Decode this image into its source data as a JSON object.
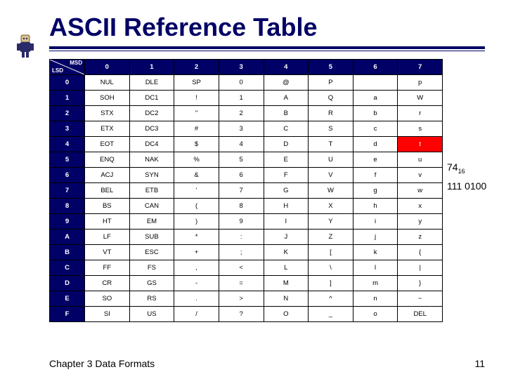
{
  "title": "ASCII Reference Table",
  "corner": {
    "msd": "MSD",
    "lsd": "LSD"
  },
  "col_headers": [
    "0",
    "1",
    "2",
    "3",
    "4",
    "5",
    "6",
    "7"
  ],
  "row_headers": [
    "0",
    "1",
    "2",
    "3",
    "4",
    "5",
    "6",
    "7",
    "8",
    "9",
    "A",
    "B",
    "C",
    "D",
    "E",
    "F"
  ],
  "cells": [
    [
      "NUL",
      "DLE",
      "SP",
      "0",
      "@",
      "P",
      "",
      "p"
    ],
    [
      "SOH",
      "DC1",
      "!",
      "1",
      "A",
      "Q",
      "a",
      "W"
    ],
    [
      "STX",
      "DC2",
      "\"",
      "2",
      "B",
      "R",
      "b",
      "r"
    ],
    [
      "ETX",
      "DC3",
      "#",
      "3",
      "C",
      "S",
      "c",
      "s"
    ],
    [
      "EOT",
      "DC4",
      "$",
      "4",
      "D",
      "T",
      "d",
      "t"
    ],
    [
      "ENQ",
      "NAK",
      "%",
      "5",
      "E",
      "U",
      "e",
      "u"
    ],
    [
      "ACJ",
      "SYN",
      "&",
      "6",
      "F",
      "V",
      "f",
      "v"
    ],
    [
      "BEL",
      "ETB",
      "'",
      "7",
      "G",
      "W",
      "g",
      "w"
    ],
    [
      "BS",
      "CAN",
      "(",
      "8",
      "H",
      "X",
      "h",
      "x"
    ],
    [
      "HT",
      "EM",
      ")",
      "9",
      "I",
      "Y",
      "i",
      "y"
    ],
    [
      "LF",
      "SUB",
      "*",
      ":",
      "J",
      "Z",
      "j",
      "z"
    ],
    [
      "VT",
      "ESC",
      "+",
      ";",
      "K",
      "[",
      "k",
      "{"
    ],
    [
      "FF",
      "FS",
      ",",
      "<",
      "L",
      "\\",
      "l",
      "|"
    ],
    [
      "CR",
      "GS",
      "-",
      "=",
      "M",
      "]",
      "m",
      "}"
    ],
    [
      "SO",
      "RS",
      ".",
      ">",
      "N",
      "^",
      "n",
      "~"
    ],
    [
      "SI",
      "US",
      "/",
      "?",
      "O",
      "_",
      "o",
      "DEL"
    ]
  ],
  "highlight": {
    "row": 4,
    "col": 7
  },
  "annotations": {
    "hex_value": "74",
    "hex_base": "16",
    "binary": "111 0100"
  },
  "footer": "Chapter 3 Data Formats",
  "page_number": "11",
  "colors": {
    "brand": "#000066",
    "highlight_bg": "#ff0000",
    "highlight_fg": "#ffffff",
    "cell_bg": "#ffffff",
    "cell_fg": "#000000",
    "border": "#000000"
  }
}
